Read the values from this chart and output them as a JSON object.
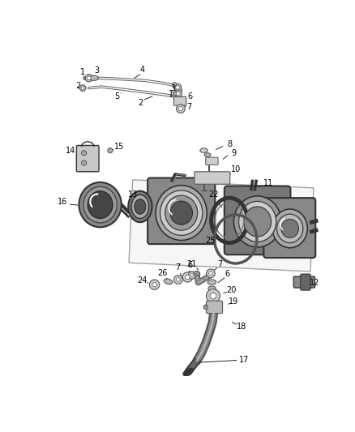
{
  "bg_color": "#ffffff",
  "fig_width": 4.38,
  "fig_height": 5.33,
  "dpi": 100,
  "label_fontsize": 7.0
}
